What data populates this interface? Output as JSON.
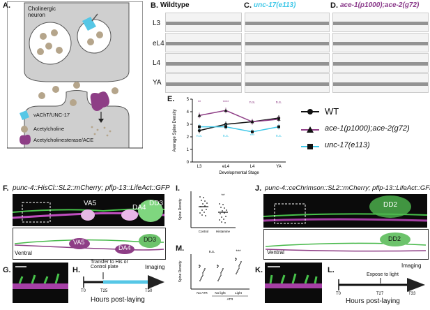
{
  "panel_labels": {
    "A": "A.",
    "B": "B.",
    "C": "C.",
    "D": "D.",
    "E": "E.",
    "F": "F.",
    "G": "G.",
    "H": "H.",
    "I": "I.",
    "J": "J.",
    "K": "K.",
    "L": "L.",
    "M": "M."
  },
  "panelA": {
    "neuron_label": "Cholinergic\nneuron",
    "legend": [
      {
        "label": "vAChT/UNC-17",
        "color": "#56c7e6"
      },
      {
        "label": "Acetylcholine",
        "color": "#b5a58b"
      },
      {
        "label": "Acetylcholinesterase/ACE",
        "color": "#8e3e86"
      }
    ]
  },
  "panelB": {
    "title": "Wildtype"
  },
  "panelC": {
    "title": "unc-17(e113)"
  },
  "panelD": {
    "title": "ace-1(p1000);ace-2(g72)"
  },
  "stages": [
    "L3",
    "eL4",
    "L4",
    "YA"
  ],
  "chart_data": {
    "type": "line",
    "categories": [
      "L3",
      "eL4",
      "L4",
      "YA"
    ],
    "ylabel": "Average Spine Density",
    "xlabel": "Developmental Stage",
    "ylim": [
      0,
      5
    ],
    "yticks": [
      0,
      1,
      2,
      3,
      4,
      5
    ],
    "series": [
      {
        "name": "WT",
        "color": "#111111",
        "marker": "circle",
        "values": [
          2.5,
          3.0,
          3.2,
          3.5
        ]
      },
      {
        "name": "ace-1(p1000);ace-2(g72)",
        "color": "#8e3e86",
        "marker": "triangle",
        "values": [
          3.7,
          4.1,
          3.2,
          3.4
        ]
      },
      {
        "name": "unc-17(e113)",
        "color": "#40c8e8",
        "marker": "square",
        "values": [
          2.8,
          2.8,
          2.4,
          2.8
        ]
      }
    ],
    "sig_top": [
      "**",
      "****",
      "n.s.",
      "n.s."
    ],
    "sig_bottom": [
      "n.s.",
      "n.s.",
      "***",
      "n.s."
    ]
  },
  "panelE_legend": [
    {
      "label": "WT"
    },
    {
      "label": "ace-1(p1000);ace-2(g72)"
    },
    {
      "label": "unc-17(e113)"
    }
  ],
  "panelF": {
    "title": "punc-4::HisCl::SL2::mCherry; pflp-13::LifeAct::GFP",
    "cells": [
      "VA5",
      "DA4",
      "DD3"
    ],
    "schematic_cells": [
      "VA5",
      "DA4",
      "DD3"
    ],
    "ventral": "Ventral"
  },
  "panelH": {
    "transfer": "Transfer to His or\nControl plate",
    "imaging": "Imaging",
    "t0": "T0",
    "t1": "T25",
    "t2": "T50",
    "xlabel": "Hours post-laying"
  },
  "panelI": {
    "ylabel": "Spine Density",
    "groups": [
      "Control",
      "Histamine"
    ],
    "sig": "**"
  },
  "panelJ": {
    "title": "punc-4::ceChrimson::SL2::mCherry; pflp-13::LifeAct::GFP",
    "cell": "DD2",
    "schematic_cell": "DD2",
    "ventral": "Ventral"
  },
  "panelL": {
    "expose": "Expose to light",
    "imaging": "Imaging",
    "t0": "T0",
    "t1": "T27",
    "t2": "T33",
    "xlabel": "Hours post-laying"
  },
  "panelM": {
    "ylabel": "Spine Density",
    "groups": [
      "No ATR",
      "No light",
      "Light"
    ],
    "xsub": "ATR",
    "sig_ns": "n.s.",
    "sig": "***"
  }
}
